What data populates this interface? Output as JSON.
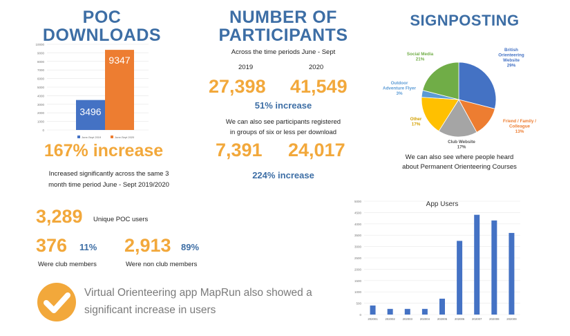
{
  "poc": {
    "title_line1": "POC",
    "title_line2": "DOWNLOADS",
    "increase": "167% increase",
    "desc_line1": "Increased significantly across the same 3",
    "desc_line2": "month time period June - Sept 2019/2020"
  },
  "participants": {
    "title_line1": "NUMBER OF",
    "title_line2": "PARTICIPANTS",
    "subtitle": "Across the time periods June - Sept",
    "year_a": "2019",
    "year_b": "2020",
    "value_a": "27,398",
    "value_b": "41,549",
    "increase": "51% increase",
    "groups_line1": "We can also see participants registered",
    "groups_line2": "in groups of six or less per download",
    "groups_a": "7,391",
    "groups_b": "24,017",
    "groups_increase": "224% increase"
  },
  "signposting": {
    "title": "SIGNPOSTING",
    "desc_line1": "We can also see where people heard",
    "desc_line2": "about Permanent Orienteering Courses"
  },
  "users": {
    "unique_value": "3,289",
    "unique_label": "Unique POC users",
    "club_value": "376",
    "club_pct": "11%",
    "club_label": "Were club members",
    "nonclub_value": "2,913",
    "nonclub_pct": "89%",
    "nonclub_label": "Were non club members"
  },
  "mapran": {
    "line1": "Virtual Orienteering app MapRun also showed a",
    "line2": "significant increase in users",
    "icon": "check-circle-icon"
  },
  "colors": {
    "heading_blue": "#3d6ea5",
    "accent_orange": "#f2a83b",
    "bar_blue": "#4472c4",
    "bar_orange": "#ed7d31",
    "slice_green": "#70ad47",
    "slice_lightblue": "#5b9bd5",
    "slice_yellow": "#ffc000",
    "slice_grey": "#a5a5a5"
  },
  "chart_data": [
    {
      "type": "bar",
      "title": "",
      "categories": [
        "June-Sept 2019",
        "June-Sept 2020"
      ],
      "values": [
        3496,
        9347
      ],
      "value_labels": [
        "3496",
        "9347"
      ],
      "bar_colors": [
        "#4472c4",
        "#ed7d31"
      ],
      "ylim": [
        0,
        10000
      ],
      "yticks": [
        "0",
        "1000",
        "2000",
        "3000",
        "4000",
        "5000",
        "6000",
        "7000",
        "8000",
        "9000",
        "10000"
      ],
      "legend": [
        "June-Sept 2019",
        "June-Sept 2020"
      ],
      "legend_position": "bottom"
    },
    {
      "type": "pie",
      "title": "",
      "slices": [
        {
          "label": "British Orienteering Website",
          "pct": 29,
          "pct_label": "29%",
          "color": "#4472c4"
        },
        {
          "label": "Friend / Family / Colleague",
          "pct": 13,
          "pct_label": "13%",
          "color": "#ed7d31"
        },
        {
          "label": "Club Website",
          "pct": 17,
          "pct_label": "17%",
          "color": "#a5a5a5"
        },
        {
          "label": "Other",
          "pct": 17,
          "pct_label": "17%",
          "color": "#ffc000"
        },
        {
          "label": "Outdoor Adventure Flyer",
          "pct": 3,
          "pct_label": "3%",
          "color": "#5b9bd5"
        },
        {
          "label": "Social Media",
          "pct": 21,
          "pct_label": "21%",
          "color": "#70ad47"
        }
      ]
    },
    {
      "type": "bar",
      "title": "App Users",
      "categories": [
        "202001",
        "202002",
        "202003",
        "202004",
        "202005",
        "202006",
        "202007",
        "202008",
        "202009"
      ],
      "values": [
        400,
        250,
        250,
        250,
        700,
        3250,
        4400,
        4150,
        3600
      ],
      "ylim": [
        0,
        5000
      ],
      "yticks": [
        "0",
        "500",
        "1000",
        "1500",
        "2000",
        "2500",
        "3000",
        "3500",
        "4000",
        "4500",
        "5000"
      ],
      "bar_color": "#4472c4"
    }
  ]
}
